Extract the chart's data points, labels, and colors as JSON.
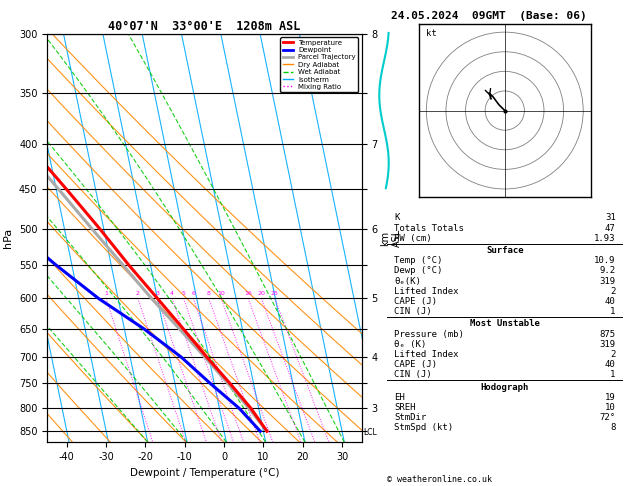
{
  "title": "40°07'N  33°00'E  1208m ASL",
  "date_title": "24.05.2024  09GMT  (Base: 06)",
  "xlabel": "Dewpoint / Temperature (°C)",
  "ylabel_left": "hPa",
  "pressure_ticks": [
    300,
    350,
    400,
    450,
    500,
    550,
    600,
    650,
    700,
    750,
    800,
    850
  ],
  "isotherm_temps": [
    -50,
    -40,
    -30,
    -20,
    -10,
    0,
    10,
    20,
    30,
    40
  ],
  "dry_adiabat_thetas": [
    -40,
    -30,
    -20,
    -10,
    0,
    10,
    20,
    30,
    40,
    50,
    60,
    70,
    80
  ],
  "wet_adiabat_temps": [
    -20,
    -10,
    0,
    10,
    20,
    30
  ],
  "mixing_ratio_values": [
    1,
    2,
    3,
    4,
    5,
    6,
    8,
    10,
    16,
    20,
    25
  ],
  "temp_profile_p": [
    850,
    800,
    750,
    700,
    650,
    600,
    550,
    500,
    450,
    400,
    350,
    300
  ],
  "temp_profile_T": [
    10.9,
    8.0,
    4.0,
    -0.5,
    -5.0,
    -10.0,
    -15.5,
    -21.0,
    -27.5,
    -35.0,
    -43.5,
    -52.0
  ],
  "dewp_profile_p": [
    850,
    800,
    750,
    700,
    650,
    600,
    550,
    500,
    450,
    400,
    350,
    300
  ],
  "dewp_profile_T": [
    9.2,
    5.0,
    -1.0,
    -7.0,
    -15.0,
    -25.0,
    -34.0,
    -43.0,
    -50.0,
    -55.0,
    -60.0,
    -65.0
  ],
  "parcel_profile_p": [
    850,
    800,
    750,
    700,
    650,
    600,
    550,
    500,
    450,
    400,
    350,
    300
  ],
  "parcel_profile_T": [
    10.9,
    7.5,
    3.5,
    -1.0,
    -6.0,
    -11.5,
    -17.0,
    -23.0,
    -29.5,
    -37.0,
    -45.0,
    -53.5
  ],
  "color_temp": "#ff0000",
  "color_dewp": "#0000ff",
  "color_parcel": "#aaaaaa",
  "color_dry_adiabat": "#ff8800",
  "color_wet_adiabat": "#00cc00",
  "color_isotherm": "#00aaff",
  "color_mixing": "#ff00ff",
  "background": "#ffffff",
  "km_tick_pressures": [
    300,
    350,
    400,
    450,
    500,
    550,
    600,
    650,
    700,
    750,
    800,
    850
  ],
  "km_tick_labels": [
    "8",
    "",
    "7",
    "",
    "6",
    "",
    "5",
    "",
    "4",
    "",
    "3",
    ""
  ],
  "stats_K": 31,
  "stats_TT": 47,
  "stats_PW": 1.93,
  "stats_surf_temp": 10.9,
  "stats_surf_dewp": 9.2,
  "stats_surf_thetae": 319,
  "stats_surf_li": 2,
  "stats_surf_cape": 40,
  "stats_surf_cin": 1,
  "stats_mu_pressure": 875,
  "stats_mu_thetae": 319,
  "stats_mu_li": 2,
  "stats_mu_cape": 40,
  "stats_mu_cin": 1,
  "stats_eh": 19,
  "stats_sreh": 10,
  "stats_stmdir": "72°",
  "stats_stmspd": 8,
  "legend_items": [
    {
      "label": "Temperature",
      "color": "#ff0000",
      "lw": 2,
      "ls": "-"
    },
    {
      "label": "Dewpoint",
      "color": "#0000ff",
      "lw": 2,
      "ls": "-"
    },
    {
      "label": "Parcel Trajectory",
      "color": "#aaaaaa",
      "lw": 2,
      "ls": "-"
    },
    {
      "label": "Dry Adiabat",
      "color": "#ff8800",
      "lw": 1,
      "ls": "-"
    },
    {
      "label": "Wet Adiabat",
      "color": "#00cc00",
      "lw": 1,
      "ls": "--"
    },
    {
      "label": "Isotherm",
      "color": "#00aaff",
      "lw": 1,
      "ls": "-"
    },
    {
      "label": "Mixing Ratio",
      "color": "#ff00ff",
      "lw": 1,
      "ls": ":"
    }
  ]
}
